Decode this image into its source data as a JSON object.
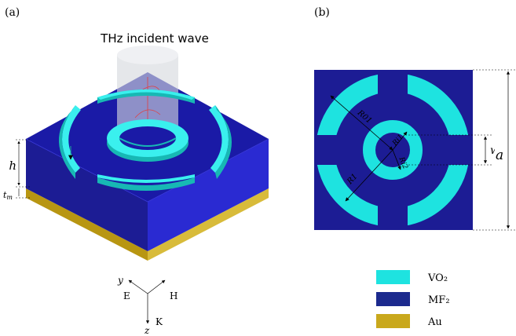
{
  "panel_a": {
    "label": "(a)",
    "incident_wave": "THz incident wave",
    "thickness_h": "h",
    "thickness_tm": "t",
    "thickness_tm_sub": "m",
    "axis_y": "y",
    "axis_z": "z",
    "field_e": "E",
    "field_h": "H",
    "wave_k": "K"
  },
  "panel_b": {
    "label": "(b)",
    "r_o1": "R01",
    "r_1": "R1",
    "r_i1": "Ri1",
    "r_i2": "Ri2",
    "gap_w": "w",
    "period_a": "a"
  },
  "legend": [
    {
      "label": "VO₂",
      "color": "#1ee3e0"
    },
    {
      "label": "MF₂",
      "color": "#1c2a8e"
    },
    {
      "label": "Au",
      "color": "#c9a81c"
    }
  ],
  "colors": {
    "vo2": "#1ee3e0",
    "mf2": "#1c2a8e",
    "au": "#c9a81c",
    "substrate_top": "#1a1aa0",
    "substrate_left": "#1c1c94",
    "substrate_right": "#2a2ad0",
    "beam": "#c8ccd4"
  }
}
